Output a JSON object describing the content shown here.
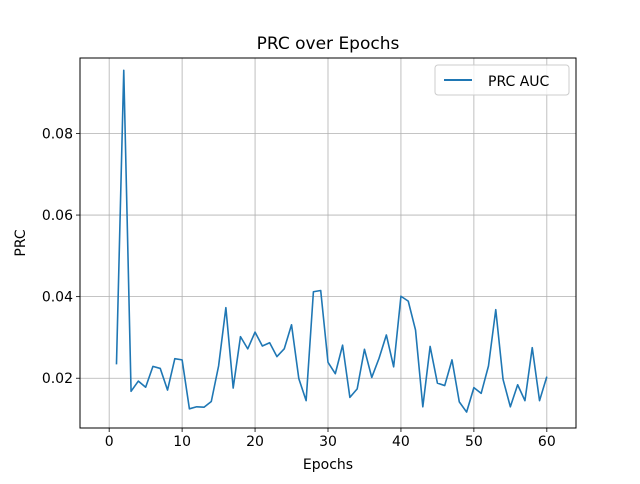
{
  "chart_data": {
    "type": "line",
    "title": "PRC over Epochs",
    "xlabel": "Epochs",
    "ylabel": "PRC",
    "xlim": [
      -4,
      64
    ],
    "ylim": [
      0.0078,
      0.0985
    ],
    "xticks": [
      0,
      10,
      20,
      30,
      40,
      50,
      60
    ],
    "yticks": [
      0.02,
      0.04,
      0.06,
      0.08
    ],
    "xtick_labels": [
      "0",
      "10",
      "20",
      "30",
      "40",
      "50",
      "60"
    ],
    "ytick_labels": [
      "0.02",
      "0.04",
      "0.06",
      "0.08"
    ],
    "grid": true,
    "legend_position": "top-right",
    "series": [
      {
        "name": "PRC AUC",
        "color": "#1f77b4",
        "x": [
          1,
          2,
          3,
          4,
          5,
          6,
          7,
          8,
          9,
          10,
          11,
          12,
          13,
          14,
          15,
          16,
          17,
          18,
          19,
          20,
          21,
          22,
          23,
          24,
          25,
          26,
          27,
          28,
          29,
          30,
          31,
          32,
          33,
          34,
          35,
          36,
          37,
          38,
          39,
          40,
          41,
          42,
          43,
          44,
          45,
          46,
          47,
          48,
          49,
          50,
          51,
          52,
          53,
          54,
          55,
          56,
          57,
          58,
          59,
          60
        ],
        "values": [
          0.0234,
          0.0955,
          0.0168,
          0.0193,
          0.0178,
          0.0229,
          0.0224,
          0.0171,
          0.0248,
          0.0245,
          0.0125,
          0.013,
          0.0129,
          0.0143,
          0.023,
          0.0373,
          0.0176,
          0.0302,
          0.0272,
          0.0313,
          0.0279,
          0.0287,
          0.0253,
          0.0272,
          0.0331,
          0.0199,
          0.0145,
          0.0412,
          0.0415,
          0.0239,
          0.0211,
          0.0281,
          0.0153,
          0.0174,
          0.0271,
          0.0202,
          0.0249,
          0.0306,
          0.0228,
          0.0401,
          0.0389,
          0.0318,
          0.013,
          0.0278,
          0.0188,
          0.0182,
          0.0245,
          0.0142,
          0.0117,
          0.0177,
          0.0163,
          0.023,
          0.0368,
          0.0197,
          0.013,
          0.0184,
          0.0145,
          0.0275,
          0.0145,
          0.0204
        ]
      }
    ]
  }
}
